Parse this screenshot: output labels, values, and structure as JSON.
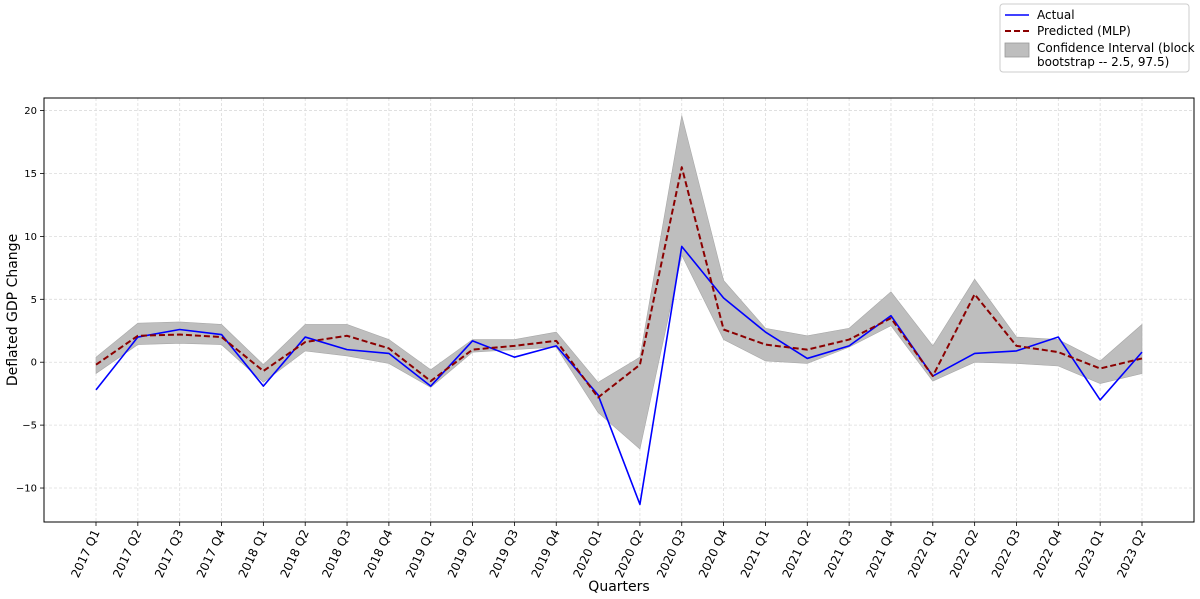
{
  "chart_data": {
    "type": "line",
    "xlabel": "Quarters",
    "ylabel": "Deflated GDP Change",
    "ylim": [
      -12.7,
      21.0
    ],
    "yticks": [
      -10,
      -5,
      0,
      5,
      10,
      15,
      20
    ],
    "grid": true,
    "legend_position": "upper-right outside",
    "categories": [
      "2017 Q1",
      "2017 Q2",
      "2017 Q3",
      "2017 Q4",
      "2018 Q1",
      "2018 Q2",
      "2018 Q3",
      "2018 Q4",
      "2019 Q1",
      "2019 Q2",
      "2019 Q3",
      "2019 Q4",
      "2020 Q1",
      "2020 Q2",
      "2020 Q3",
      "2020 Q4",
      "2021 Q1",
      "2021 Q2",
      "2021 Q3",
      "2021 Q4",
      "2022 Q1",
      "2022 Q2",
      "2022 Q3",
      "2022 Q4",
      "2023 Q1",
      "2023 Q2"
    ],
    "series": [
      {
        "name": "Actual",
        "color": "#0000ff",
        "style": "solid",
        "values": [
          -2.2,
          2.0,
          2.6,
          2.2,
          -1.9,
          2.0,
          1.0,
          0.7,
          -1.9,
          1.7,
          0.4,
          1.3,
          -2.6,
          -11.3,
          9.2,
          5.1,
          2.4,
          0.3,
          1.3,
          3.7,
          -1.1,
          0.7,
          0.9,
          2.0,
          -3.0,
          0.8
        ]
      },
      {
        "name": "Predicted (MLP)",
        "color": "#8b0000",
        "style": "dashed",
        "values": [
          -0.2,
          2.1,
          2.2,
          2.0,
          -0.7,
          1.6,
          2.1,
          1.1,
          -1.5,
          1.0,
          1.3,
          1.7,
          -2.8,
          -0.2,
          15.5,
          2.6,
          1.4,
          1.0,
          1.8,
          3.5,
          -1.1,
          5.4,
          1.3,
          0.8,
          -0.5,
          0.3
        ]
      }
    ],
    "confidence_interval": {
      "name": "Confidence Interval (block bootstrap -- 2.5, 97.5)",
      "color": "#bebebe",
      "upper": [
        0.4,
        3.1,
        3.2,
        3.0,
        -0.2,
        3.0,
        3.0,
        1.8,
        -0.6,
        1.8,
        1.8,
        2.4,
        -1.6,
        0.4,
        19.6,
        6.5,
        2.7,
        2.1,
        2.7,
        5.6,
        1.3,
        6.6,
        2.0,
        1.8,
        0.1,
        3.0
      ],
      "lower": [
        -0.9,
        1.4,
        1.5,
        1.4,
        -1.6,
        0.9,
        0.5,
        -0.1,
        -2.0,
        0.8,
        1.0,
        1.2,
        -4.0,
        -6.9,
        8.5,
        1.8,
        0.1,
        -0.1,
        1.2,
        2.9,
        -1.5,
        0.0,
        -0.1,
        -0.3,
        -1.7,
        -0.9
      ]
    },
    "legend": {
      "actual_label": "Actual",
      "predicted_label": "Predicted (MLP)",
      "ci_label_line1": "Confidence Interval (block",
      "ci_label_line2": "bootstrap -- 2.5, 97.5)"
    }
  }
}
